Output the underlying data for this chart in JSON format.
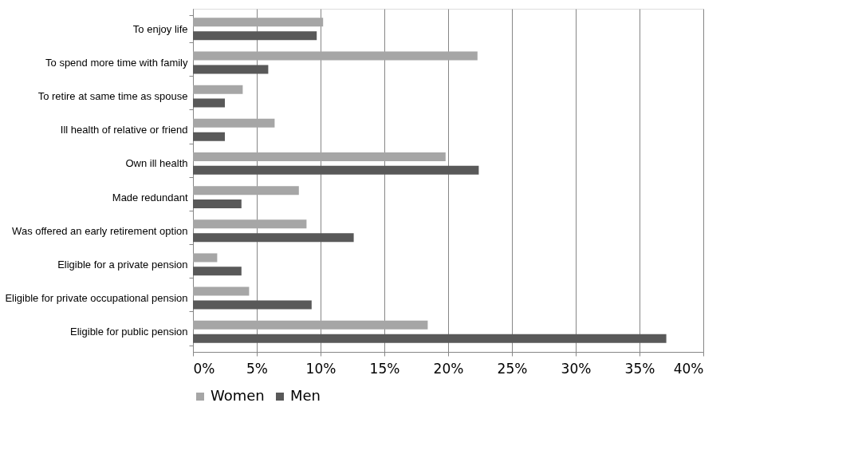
{
  "chart_data": {
    "type": "bar",
    "orientation": "horizontal",
    "categories": [
      "To enjoy life",
      "To spend more time with family",
      "To retire at same time as spouse",
      "Ill health of relative or friend",
      "Own ill health",
      "Made redundant",
      "Was offered an early retirement option",
      "Eligible for a private pension",
      "Eligible for private occupational pension",
      "Eligible for public pension"
    ],
    "series": [
      {
        "name": "Women",
        "color": "#a6a6a6",
        "values": [
          10.2,
          22.3,
          3.9,
          6.4,
          19.8,
          8.3,
          8.9,
          1.9,
          4.4,
          18.4
        ]
      },
      {
        "name": "Men",
        "color": "#595959",
        "values": [
          9.7,
          5.9,
          2.5,
          2.5,
          22.4,
          3.8,
          12.6,
          3.8,
          9.3,
          37.1
        ]
      }
    ],
    "xlim": [
      0,
      40
    ],
    "xticks": [
      {
        "value": 0,
        "label": "0%"
      },
      {
        "value": 5,
        "label": "5%"
      },
      {
        "value": 10,
        "label": "10%"
      },
      {
        "value": 15,
        "label": "15%"
      },
      {
        "value": 20,
        "label": "20%"
      },
      {
        "value": 25,
        "label": "25%"
      },
      {
        "value": 30,
        "label": "30%"
      },
      {
        "value": 35,
        "label": "35%"
      },
      {
        "value": 40,
        "label": "40%"
      }
    ],
    "grid": "x",
    "legend": "bottom"
  }
}
